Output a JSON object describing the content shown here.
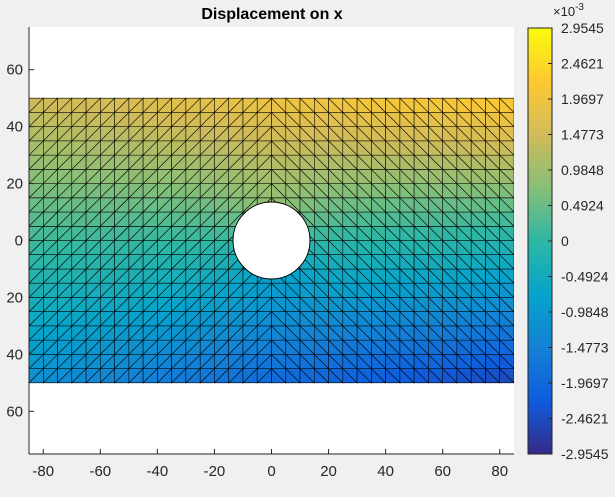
{
  "chart_data": {
    "type": "heatmap",
    "title": "Displacement on x",
    "xlabel": "",
    "ylabel": "",
    "xlim": [
      -85,
      85
    ],
    "ylim": [
      -75,
      75
    ],
    "x_ticks": [
      -80,
      -60,
      -40,
      -20,
      0,
      20,
      40,
      60,
      80
    ],
    "y_ticks": [
      -60,
      -40,
      -20,
      0,
      20,
      40,
      60
    ],
    "y_tick_labels_visible": [
      "60",
      "40",
      "20",
      "0",
      "20",
      "40",
      "60"
    ],
    "plate": {
      "x_range": [
        -85,
        85
      ],
      "y_range": [
        -50,
        50
      ],
      "hole_center": [
        0,
        0
      ],
      "hole_radius": 13.5
    },
    "mesh": "triangular",
    "colorbar": {
      "position": "right",
      "exponent_label": "×10",
      "exponent_power": "-3",
      "colormap": "parula",
      "min": -2.9545,
      "max": 2.9545,
      "tick_values": [
        2.9545,
        2.4621,
        1.9697,
        1.4773,
        0.9848,
        0.4924,
        0,
        -0.4924,
        -0.9848,
        -1.4773,
        -1.9697,
        -2.4621,
        -2.9545
      ],
      "tick_labels": [
        "2.9545",
        "2.4621",
        "1.9697",
        "1.4773",
        "0.9848",
        "0.4924",
        "0",
        "-0.4924",
        "-0.9848",
        "-1.4773",
        "-1.9697",
        "-2.4621",
        "-2.9545"
      ]
    }
  }
}
